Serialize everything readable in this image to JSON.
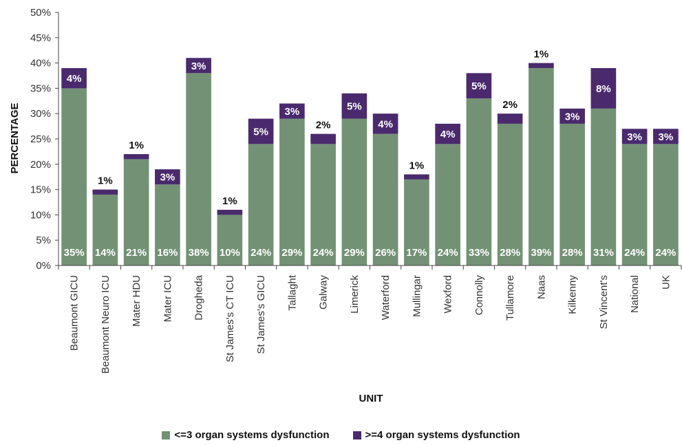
{
  "colors": {
    "low": "#739275",
    "high": "#4a2a6d"
  },
  "chart_data": {
    "type": "bar",
    "stacked": true,
    "xlabel": "UNIT",
    "ylabel": "PERCENTAGE",
    "ylim": [
      0,
      50
    ],
    "yticks": [
      0,
      5,
      10,
      15,
      20,
      25,
      30,
      35,
      40,
      45,
      50
    ],
    "ytick_labels": [
      "0%",
      "5%",
      "10%",
      "15%",
      "20%",
      "25%",
      "30%",
      "35%",
      "40%",
      "45%",
      "50%"
    ],
    "categories": [
      "Beaumont GICU",
      "Beaumont Neuro ICU",
      "Mater HDU",
      "Mater ICU",
      "Drogheda",
      "St James's CT ICU",
      "St James's GICU",
      "Tallaght",
      "Galway",
      "Limerick",
      "Waterford",
      "Mullingar",
      "Wexford",
      "Connolly",
      "Tullamore",
      "Naas",
      "Kilkenny",
      "St Vincent's",
      "National",
      "UK"
    ],
    "series": [
      {
        "name": "<=3 organ systems dysfunction",
        "values": [
          35,
          14,
          21,
          16,
          38,
          10,
          24,
          29,
          24,
          29,
          26,
          17,
          24,
          33,
          28,
          39,
          28,
          31,
          24,
          24
        ],
        "labels": [
          "35%",
          "14%",
          "21%",
          "16%",
          "38%",
          "10%",
          "24%",
          "29%",
          "24%",
          "29%",
          "26%",
          "17%",
          "24%",
          "33%",
          "28%",
          "39%",
          "28%",
          "31%",
          "24%",
          "24%"
        ]
      },
      {
        "name": ">=4 organ systems dysfunction",
        "values": [
          4,
          1,
          1,
          3,
          3,
          1,
          5,
          3,
          2,
          5,
          4,
          1,
          4,
          5,
          2,
          1,
          3,
          8,
          3,
          3
        ],
        "labels": [
          "4%",
          "1%",
          "1%",
          "3%",
          "3%",
          "1%",
          "5%",
          "3%",
          "2%",
          "5%",
          "4%",
          "1%",
          "4%",
          "5%",
          "2%",
          "1%",
          "3%",
          "8%",
          "3%",
          "3%"
        ]
      }
    ],
    "legend_position": "bottom",
    "grid": false
  }
}
